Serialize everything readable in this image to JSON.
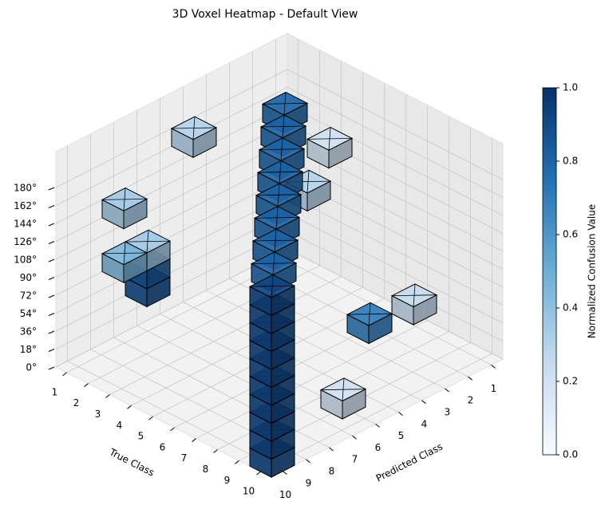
{
  "chart_data": {
    "type": "voxel",
    "title": "3D Voxel Heatmap - Default View",
    "x_label": "Predicted Class",
    "y_label": "True Class",
    "colorbar_label": "Normalized Confusion Value",
    "xlim": [
      0.5,
      10.5
    ],
    "xticks": [
      1,
      2,
      3,
      4,
      5,
      6,
      7,
      8,
      9,
      10
    ],
    "ylim": [
      0.5,
      10.5
    ],
    "yticks": [
      1,
      2,
      3,
      4,
      5,
      6,
      7,
      8,
      9,
      10
    ],
    "zlim": [
      0,
      216
    ],
    "zticks": [
      {
        "value": 0,
        "label": "0°"
      },
      {
        "value": 18,
        "label": "18°"
      },
      {
        "value": 36,
        "label": "36°"
      },
      {
        "value": 54,
        "label": "54°"
      },
      {
        "value": 72,
        "label": "72°"
      },
      {
        "value": 90,
        "label": "90°"
      },
      {
        "value": 108,
        "label": "108°"
      },
      {
        "value": 126,
        "label": "126°"
      },
      {
        "value": 144,
        "label": "144°"
      },
      {
        "value": 162,
        "label": "162°"
      },
      {
        "value": 180,
        "label": "180°"
      }
    ],
    "clim": [
      0,
      1
    ],
    "cticks": [
      {
        "value": 0,
        "label": "0.0"
      },
      {
        "value": 0.2,
        "label": "0.2"
      },
      {
        "value": 0.4,
        "label": "0.4"
      },
      {
        "value": 0.6,
        "label": "0.6"
      },
      {
        "value": 0.8,
        "label": "0.8"
      },
      {
        "value": 1,
        "label": "1.0"
      }
    ],
    "colormap": [
      "#f7fbff",
      "#c6dbef",
      "#6baed6",
      "#2171b5",
      "#08306b"
    ],
    "grid": true,
    "voxels": [
      {
        "true": 10,
        "pred": 10,
        "z": 0,
        "value": 0.92
      },
      {
        "true": 10,
        "pred": 10,
        "z": 18,
        "value": 0.92
      },
      {
        "true": 10,
        "pred": 10,
        "z": 36,
        "value": 0.92
      },
      {
        "true": 10,
        "pred": 10,
        "z": 54,
        "value": 0.92
      },
      {
        "true": 10,
        "pred": 10,
        "z": 72,
        "value": 0.92
      },
      {
        "true": 10,
        "pred": 10,
        "z": 90,
        "value": 0.92
      },
      {
        "true": 10,
        "pred": 10,
        "z": 108,
        "value": 0.92
      },
      {
        "true": 10,
        "pred": 10,
        "z": 126,
        "value": 0.92
      },
      {
        "true": 10,
        "pred": 10,
        "z": 144,
        "value": 0.92
      },
      {
        "true": 10,
        "pred": 10,
        "z": 162,
        "value": 0.92
      },
      {
        "true": 9,
        "pred": 9,
        "z": 162,
        "value": 0.8
      },
      {
        "true": 8,
        "pred": 8,
        "z": 162,
        "value": 0.8
      },
      {
        "true": 7,
        "pred": 7,
        "z": 162,
        "value": 0.8
      },
      {
        "true": 6,
        "pred": 6,
        "z": 162,
        "value": 0.8
      },
      {
        "true": 5,
        "pred": 5,
        "z": 162,
        "value": 0.8
      },
      {
        "true": 4,
        "pred": 4,
        "z": 162,
        "value": 0.8
      },
      {
        "true": 3,
        "pred": 3,
        "z": 162,
        "value": 0.8
      },
      {
        "true": 2,
        "pred": 2,
        "z": 162,
        "value": 0.8
      },
      {
        "true": 3,
        "pred": 1,
        "z": 126,
        "value": 0.2
      },
      {
        "true": 2,
        "pred": 1,
        "z": 72,
        "value": 0.3
      },
      {
        "true": 1,
        "pred": 5,
        "z": 162,
        "value": 0.3
      },
      {
        "true": 1,
        "pred": 8,
        "z": 126,
        "value": 0.35
      },
      {
        "true": 1,
        "pred": 8,
        "z": 72,
        "value": 0.45
      },
      {
        "true": 1,
        "pred": 7,
        "z": 72,
        "value": 0.35
      },
      {
        "true": 1,
        "pred": 7,
        "z": 54,
        "value": 0.85
      },
      {
        "true": 1,
        "pred": 7,
        "z": 36,
        "value": 0.9
      },
      {
        "true": 7,
        "pred": 3,
        "z": 18,
        "value": 0.7
      },
      {
        "true": 8,
        "pred": 2,
        "z": 36,
        "value": 0.25
      },
      {
        "true": 9,
        "pred": 6,
        "z": 0,
        "value": 0.2
      }
    ]
  }
}
